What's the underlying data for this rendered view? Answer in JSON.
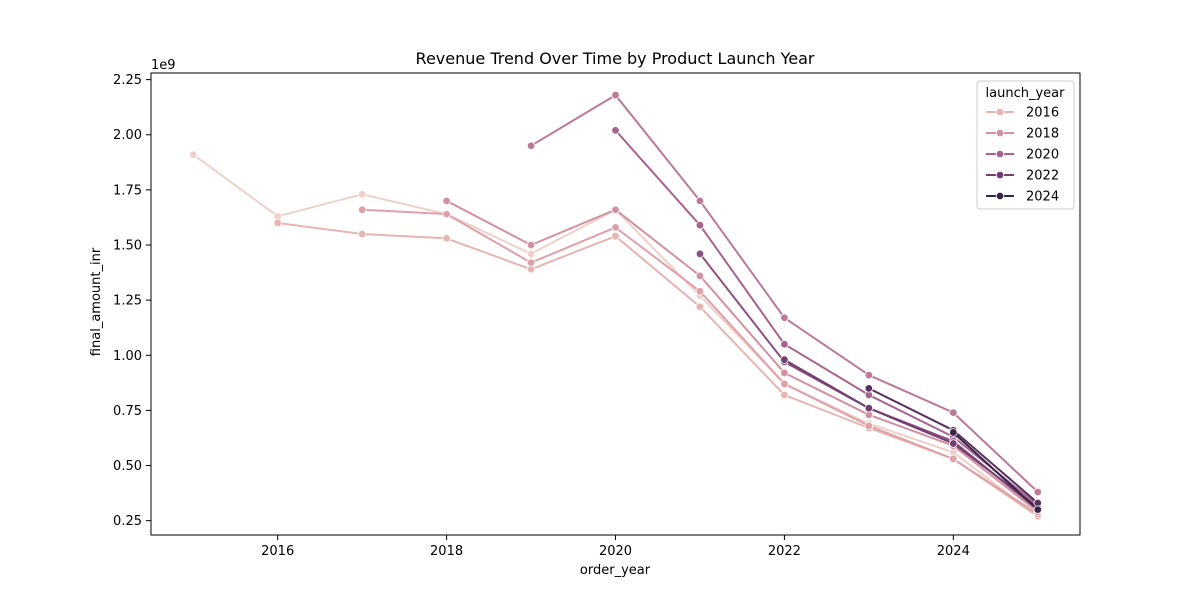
{
  "chart_data": {
    "type": "line",
    "title": "Revenue Trend Over Time by Product Launch Year",
    "xlabel": "order_year",
    "ylabel": "final_amount_inr",
    "y_offset_label": "1e9",
    "xlim": [
      2014.5,
      2025.5
    ],
    "ylim": [
      0.185,
      2.28
    ],
    "x_ticks": [
      2016,
      2018,
      2020,
      2022,
      2024
    ],
    "x_tick_labels": [
      "2016",
      "2018",
      "2020",
      "2022",
      "2024"
    ],
    "y_ticks": [
      0.25,
      0.5,
      0.75,
      1.0,
      1.25,
      1.5,
      1.75,
      2.0,
      2.25
    ],
    "y_tick_labels": [
      "0.25",
      "0.50",
      "0.75",
      "1.00",
      "1.25",
      "1.50",
      "1.75",
      "2.00",
      "2.25"
    ],
    "grid": false,
    "legend": {
      "title": "launch_year",
      "placement": "top-right",
      "entries": [
        {
          "label": "2016",
          "color": "#e8b4b0"
        },
        {
          "label": "2018",
          "color": "#d48fa0"
        },
        {
          "label": "2020",
          "color": "#a9628e"
        },
        {
          "label": "2022",
          "color": "#723e72"
        },
        {
          "label": "2024",
          "color": "#3a2447"
        }
      ]
    },
    "series": [
      {
        "color": "#efd0c8",
        "points": [
          [
            2015,
            1.91
          ],
          [
            2016,
            1.63
          ],
          [
            2017,
            1.73
          ],
          [
            2018,
            1.64
          ],
          [
            2019,
            1.46
          ],
          [
            2020,
            1.66
          ],
          [
            2021,
            1.27
          ],
          [
            2022,
            0.87
          ],
          [
            2023,
            0.69
          ],
          [
            2024,
            0.56
          ],
          [
            2025,
            0.27
          ]
        ]
      },
      {
        "color": "#e8b4b0",
        "points": [
          [
            2016,
            1.6
          ],
          [
            2017,
            1.55
          ],
          [
            2018,
            1.53
          ],
          [
            2019,
            1.39
          ],
          [
            2020,
            1.54
          ],
          [
            2021,
            1.22
          ],
          [
            2022,
            0.82
          ],
          [
            2023,
            0.67
          ],
          [
            2024,
            0.53
          ],
          [
            2025,
            0.27
          ]
        ]
      },
      {
        "color": "#dfa0a8",
        "points": [
          [
            2017,
            1.66
          ],
          [
            2018,
            1.64
          ],
          [
            2019,
            1.42
          ],
          [
            2020,
            1.58
          ],
          [
            2021,
            1.29
          ],
          [
            2022,
            0.87
          ],
          [
            2023,
            0.68
          ],
          [
            2024,
            0.53
          ],
          [
            2025,
            0.28
          ]
        ]
      },
      {
        "color": "#d48fa0",
        "points": [
          [
            2018,
            1.7
          ],
          [
            2019,
            1.5
          ],
          [
            2020,
            1.66
          ],
          [
            2021,
            1.36
          ],
          [
            2022,
            0.92
          ],
          [
            2023,
            0.73
          ],
          [
            2024,
            0.59
          ],
          [
            2025,
            0.29
          ]
        ]
      },
      {
        "color": "#be7897",
        "points": [
          [
            2019,
            1.95
          ],
          [
            2020,
            2.18
          ],
          [
            2021,
            1.7
          ],
          [
            2022,
            1.17
          ],
          [
            2023,
            0.91
          ],
          [
            2024,
            0.74
          ],
          [
            2025,
            0.38
          ]
        ]
      },
      {
        "color": "#a9628e",
        "points": [
          [
            2020,
            2.02
          ],
          [
            2021,
            1.59
          ],
          [
            2022,
            1.05
          ],
          [
            2023,
            0.82
          ],
          [
            2024,
            0.63
          ],
          [
            2025,
            0.32
          ]
        ]
      },
      {
        "color": "#8d4f80",
        "points": [
          [
            2021,
            1.46
          ],
          [
            2022,
            0.97
          ],
          [
            2023,
            0.76
          ],
          [
            2024,
            0.61
          ],
          [
            2025,
            0.3
          ]
        ]
      },
      {
        "color": "#723e72",
        "points": [
          [
            2022,
            0.98
          ],
          [
            2023,
            0.76
          ],
          [
            2024,
            0.6
          ],
          [
            2025,
            0.31
          ]
        ]
      },
      {
        "color": "#563160",
        "points": [
          [
            2023,
            0.85
          ],
          [
            2024,
            0.66
          ],
          [
            2025,
            0.33
          ]
        ]
      },
      {
        "color": "#3a2447",
        "points": [
          [
            2024,
            0.65
          ],
          [
            2025,
            0.3
          ]
        ]
      }
    ]
  }
}
